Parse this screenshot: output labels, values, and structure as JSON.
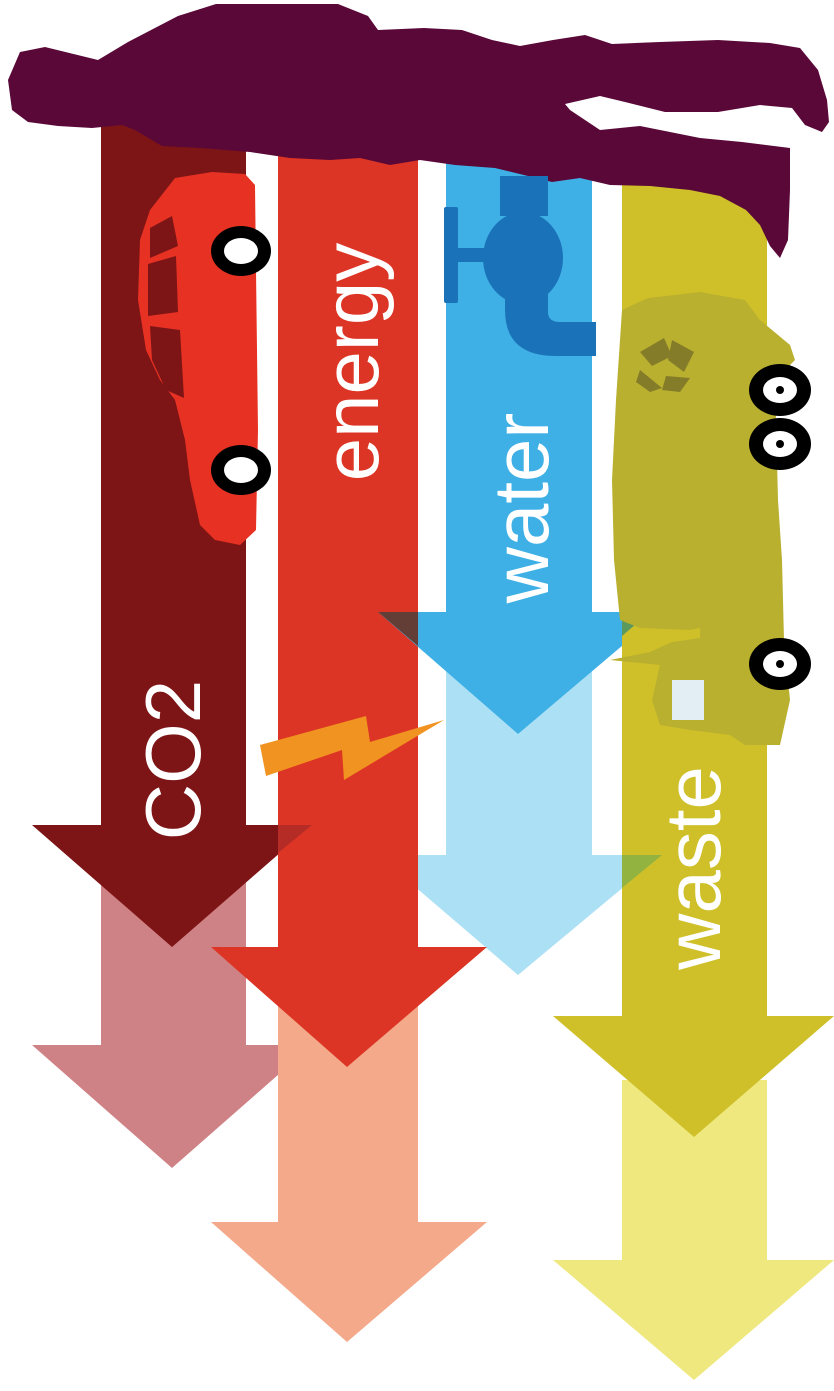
{
  "labels": {
    "co2": "CO2",
    "energy": "energy",
    "water": "water",
    "waste": "waste"
  },
  "icons": {
    "person": "person-silhouette-icon",
    "car": "car-icon",
    "tap": "water-tap-icon",
    "truck": "garbage-truck-icon",
    "lightning": "lightning-bolt-icon",
    "recycle": "recycle-icon"
  },
  "colors": {
    "person": "#5a0838",
    "co2": "#7d1416",
    "co2_light": "#cf8285",
    "energy": "#dd3525",
    "energy_light": "#f3a98a",
    "water": "#3fb0e6",
    "water_light": "#abe0f5",
    "waste": "#cfc02a",
    "waste_light": "#eee87e",
    "car": "#e73223",
    "tap": "#1a73b8",
    "truck": "#b9b02f",
    "bolt": "#f19320"
  }
}
